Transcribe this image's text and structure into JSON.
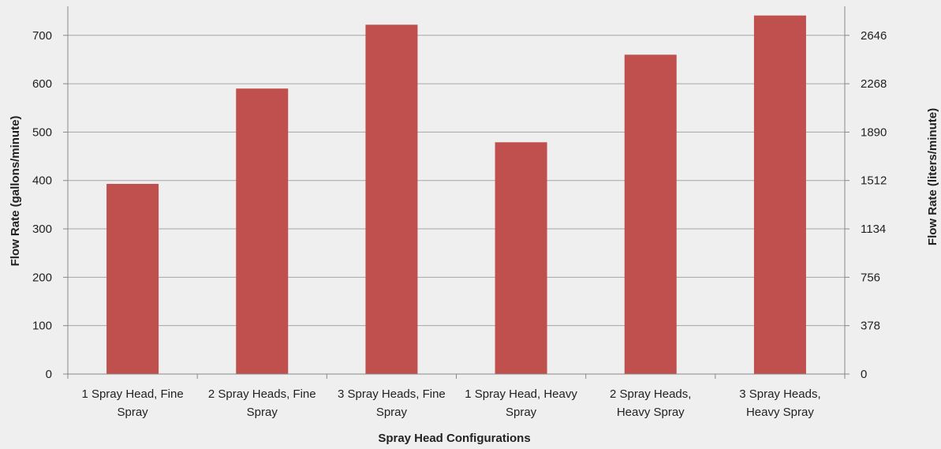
{
  "chart_data": {
    "type": "bar",
    "categories": [
      [
        "1 Spray Head, Fine",
        "Spray"
      ],
      [
        "2 Spray Heads, Fine",
        "Spray"
      ],
      [
        "3 Spray Heads, Fine",
        "Spray"
      ],
      [
        "1 Spray Head, Heavy",
        "Spray"
      ],
      [
        "2 Spray Heads,",
        "Heavy Spray"
      ],
      [
        "3 Spray Heads,",
        "Heavy Spray"
      ]
    ],
    "values": [
      393,
      590,
      722,
      479,
      660,
      741
    ],
    "bar_color": "#c0504d",
    "xlabel": "Spray Head Configurations",
    "ylabel": "Flow Rate (gallons/minute)",
    "ylabel_right": "Flow Rate (liters/minute)",
    "ylim": [
      0,
      760
    ],
    "yticks": [
      0,
      100,
      200,
      300,
      400,
      500,
      600,
      700
    ],
    "yticks_right": [
      "0",
      "378",
      "756",
      "1134",
      "1512",
      "1890",
      "2268",
      "2646"
    ],
    "grid": true,
    "gridline_color": "#a6a6a6",
    "legend": "none"
  }
}
